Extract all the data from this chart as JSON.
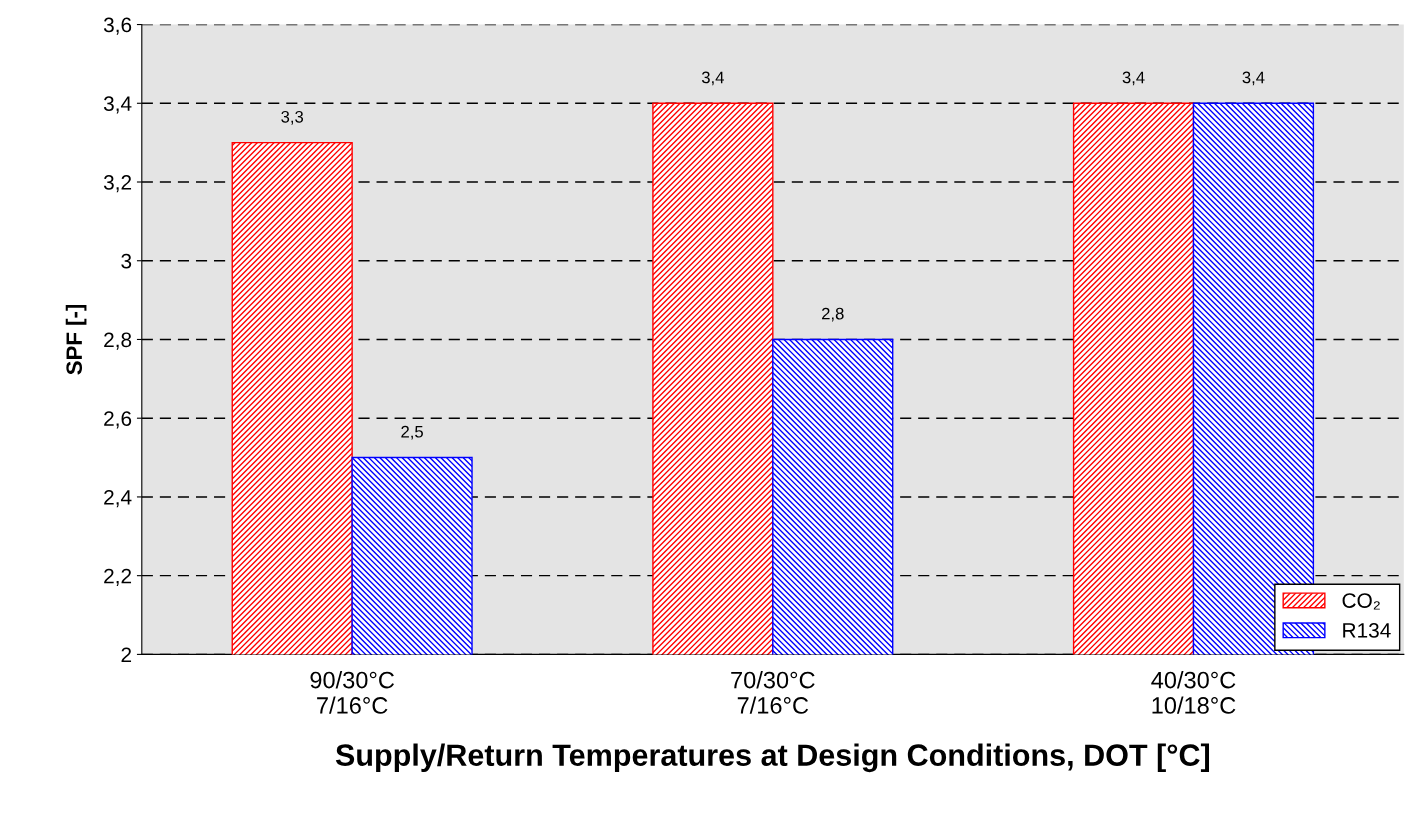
{
  "chart_data": {
    "type": "bar",
    "xlabel": "Supply/Return Temperatures at Design Conditions, DOT [°C]",
    "ylabel": "SPF [-]",
    "categories": [
      "90/30°C\n7/16°C",
      "70/30°C\n7/16°C",
      "40/30°C\n10/18°C"
    ],
    "series": [
      {
        "name": "CO₂",
        "color": "#ff0000",
        "values": [
          3.3,
          3.4,
          3.4
        ],
        "value_labels": [
          "3,3",
          "3,4",
          "3,4"
        ]
      },
      {
        "name": "R134",
        "color": "#0000ff",
        "values": [
          2.5,
          2.8,
          3.4
        ],
        "value_labels": [
          "2,5",
          "2,8",
          "3,4"
        ]
      }
    ],
    "ylim": [
      2,
      3.6
    ],
    "yticks": [
      2,
      {
        "value": 2.2,
        "label": "2,2"
      },
      {
        "value": 2.4,
        "label": "2,4"
      },
      {
        "value": 2.6,
        "label": "2,6"
      },
      {
        "value": 2.8,
        "label": "2,8"
      },
      3,
      {
        "value": 3.2,
        "label": "3,2"
      },
      {
        "value": 3.4,
        "label": "3,4"
      },
      {
        "value": 3.6,
        "label": "3,6"
      }
    ],
    "grid": "y",
    "line_style": "dashed",
    "legend": "bottom right"
  }
}
